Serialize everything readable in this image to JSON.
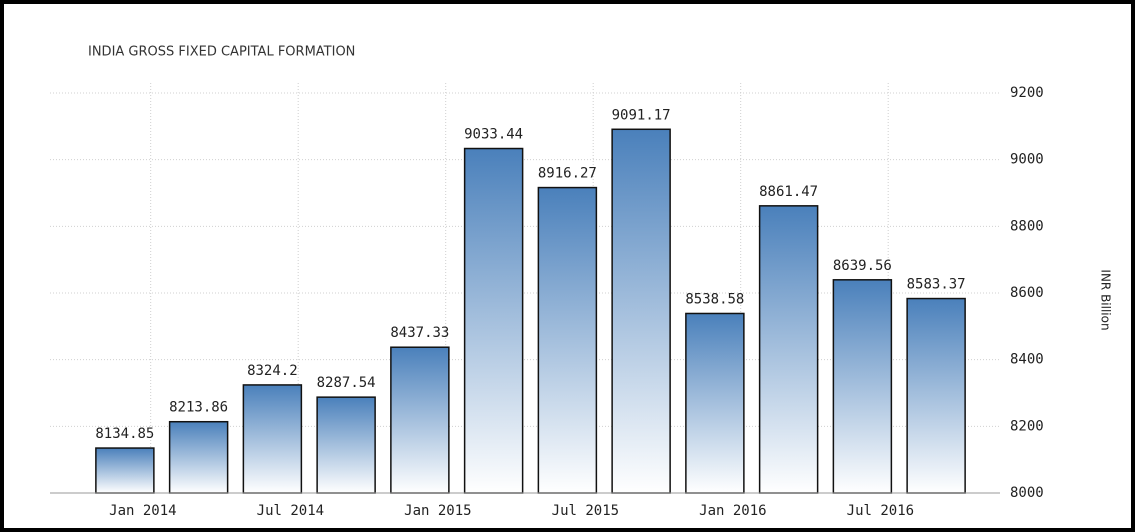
{
  "chart_data": {
    "type": "bar",
    "title": "INDIA GROSS FIXED CAPITAL FORMATION",
    "y_axis_label": "INR Billion",
    "categories": [
      "Jan 2014",
      null,
      "Jul 2014",
      null,
      "Jan 2015",
      null,
      "Jul 2015",
      null,
      "Jan 2016",
      null,
      "Jul 2016",
      null
    ],
    "values": [
      8134.85,
      8213.86,
      8324.2,
      8287.54,
      8437.33,
      9033.44,
      8916.27,
      9091.17,
      8538.58,
      8861.47,
      8639.56,
      8583.37
    ],
    "color": "#4a80bb",
    "ylim": [
      8000,
      9200
    ],
    "yticks": [
      8000,
      8200,
      8400,
      8600,
      8800,
      9000,
      9200
    ],
    "grid": true
  }
}
